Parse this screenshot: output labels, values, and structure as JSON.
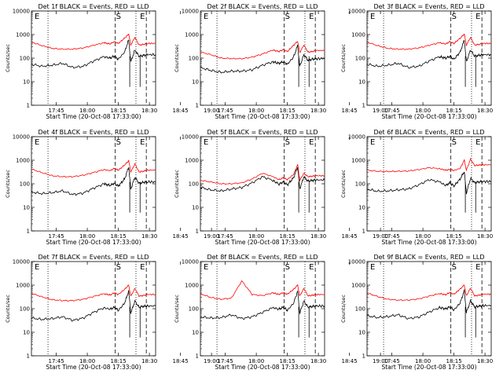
{
  "figure": {
    "ylabel": "Counts/sec",
    "xlabel": "Start Time (20-Oct-08 17:33:00)",
    "x_ticks": [
      "17:45",
      "18:00",
      "18:15",
      "18:30",
      "18:45",
      "19:00"
    ],
    "y_ticks": [
      "1",
      "10",
      "100",
      "1000",
      "10000"
    ],
    "markers": [
      "E",
      "S",
      "E"
    ],
    "colors": {
      "events": "#000000",
      "lld": "#ff0000"
    }
  },
  "chart_data": [
    {
      "type": "line",
      "title": "Det 1f BLACK = Events, RED = LLD",
      "xlabel": "Start Time (20-Oct-08 17:33:00)",
      "ylabel": "Counts/sec",
      "x_unit": "minutes since 17:33:00",
      "xlim": [
        0,
        60
      ],
      "ylim": [
        1,
        10000
      ],
      "ylog": true,
      "markers": {
        "dotted_lines_min": [
          8,
          50.5
        ],
        "dashed_lines_min": [
          40.5,
          55.5
        ],
        "letters": [
          "E",
          "S",
          "E"
        ]
      },
      "x": [
        0,
        5,
        10,
        15,
        20,
        25,
        30,
        35,
        38,
        40,
        42,
        45,
        47,
        48,
        50,
        52,
        54,
        56,
        60
      ],
      "series": [
        {
          "name": "Events",
          "color": "#000000",
          "values": [
            55,
            45,
            50,
            60,
            40,
            45,
            75,
            115,
            100,
            120,
            90,
            180,
            600,
            70,
            220,
            120,
            130,
            140,
            140
          ]
        },
        {
          "name": "LLD",
          "color": "#ff0000",
          "values": [
            480,
            340,
            260,
            240,
            240,
            270,
            350,
            450,
            400,
            500,
            420,
            700,
            1050,
            360,
            760,
            360,
            380,
            420,
            420
          ]
        }
      ]
    },
    {
      "type": "line",
      "title": "Det 2f BLACK = Events, RED = LLD",
      "xlabel": "Start Time (20-Oct-08 17:33:00)",
      "ylabel": "Counts/sec",
      "x_unit": "minutes since 17:33:00",
      "xlim": [
        0,
        60
      ],
      "ylim": [
        1,
        10000
      ],
      "ylog": true,
      "markers": {
        "dotted_lines_min": [
          8,
          50.5
        ],
        "dashed_lines_min": [
          40.5,
          55.5
        ],
        "letters": [
          "E",
          "S",
          "E"
        ]
      },
      "x": [
        0,
        5,
        10,
        15,
        20,
        25,
        30,
        35,
        38,
        40,
        42,
        45,
        47,
        48,
        50,
        52,
        54,
        56,
        60
      ],
      "series": [
        {
          "name": "Events",
          "color": "#000000",
          "values": [
            40,
            30,
            25,
            28,
            28,
            32,
            50,
            70,
            60,
            70,
            55,
            110,
            350,
            45,
            140,
            80,
            90,
            95,
            95
          ]
        },
        {
          "name": "LLD",
          "color": "#ff0000",
          "values": [
            180,
            140,
            100,
            95,
            95,
            110,
            150,
            220,
            190,
            230,
            190,
            350,
            520,
            170,
            360,
            180,
            190,
            210,
            210
          ]
        }
      ]
    },
    {
      "type": "line",
      "title": "Det 3f BLACK = Events, RED = LLD",
      "xlabel": "Start Time (20-Oct-08 17:33:00)",
      "ylabel": "Counts/sec",
      "x_unit": "minutes since 17:33:00",
      "xlim": [
        0,
        60
      ],
      "ylim": [
        1,
        10000
      ],
      "ylog": true,
      "markers": {
        "dotted_lines_min": [
          8,
          50.5
        ],
        "dashed_lines_min": [
          40.5,
          55.5
        ],
        "letters": [
          "E",
          "S",
          "E"
        ]
      },
      "x": [
        0,
        5,
        10,
        15,
        20,
        25,
        30,
        35,
        38,
        40,
        42,
        45,
        47,
        48,
        50,
        52,
        54,
        56,
        60
      ],
      "series": [
        {
          "name": "Events",
          "color": "#000000",
          "values": [
            55,
            45,
            50,
            60,
            40,
            45,
            75,
            115,
            100,
            120,
            90,
            180,
            600,
            70,
            220,
            120,
            130,
            140,
            140
          ]
        },
        {
          "name": "LLD",
          "color": "#ff0000",
          "values": [
            480,
            340,
            260,
            240,
            240,
            270,
            350,
            450,
            400,
            500,
            420,
            700,
            1050,
            360,
            760,
            360,
            380,
            420,
            420
          ]
        }
      ]
    },
    {
      "type": "line",
      "title": "Det 4f BLACK = Events, RED = LLD",
      "xlabel": "Start Time (20-Oct-08 17:33:00)",
      "ylabel": "Counts/sec",
      "x_unit": "minutes since 17:33:00",
      "xlim": [
        0,
        60
      ],
      "ylim": [
        1,
        10000
      ],
      "ylog": true,
      "markers": {
        "dotted_lines_min": [
          8,
          50.5
        ],
        "dashed_lines_min": [
          40.5,
          55.5
        ],
        "letters": [
          "E",
          "S",
          "E"
        ]
      },
      "x": [
        0,
        5,
        10,
        15,
        20,
        25,
        30,
        35,
        38,
        40,
        42,
        45,
        47,
        48,
        50,
        52,
        54,
        56,
        60
      ],
      "series": [
        {
          "name": "Events",
          "color": "#000000",
          "values": [
            45,
            38,
            42,
            50,
            35,
            40,
            65,
            100,
            85,
            105,
            80,
            160,
            520,
            60,
            190,
            105,
            115,
            120,
            120
          ]
        },
        {
          "name": "LLD",
          "color": "#ff0000",
          "values": [
            420,
            300,
            220,
            200,
            200,
            230,
            300,
            400,
            360,
            450,
            380,
            620,
            950,
            320,
            690,
            320,
            340,
            380,
            380
          ]
        }
      ]
    },
    {
      "type": "line",
      "title": "Det 5f BLACK = Events, RED = LLD",
      "xlabel": "Start Time (20-Oct-08 17:33:00)",
      "ylabel": "Counts/sec",
      "x_unit": "minutes since 17:33:00",
      "xlim": [
        0,
        60
      ],
      "ylim": [
        1,
        10000
      ],
      "ylog": true,
      "markers": {
        "dotted_lines_min": [
          8,
          50.5
        ],
        "dashed_lines_min": [
          40.5,
          55.5
        ],
        "letters": [
          "E",
          "S",
          "E"
        ]
      },
      "x": [
        0,
        5,
        10,
        15,
        20,
        25,
        30,
        35,
        38,
        40,
        42,
        45,
        47,
        48,
        50,
        52,
        54,
        56,
        60
      ],
      "series": [
        {
          "name": "Events",
          "color": "#000000",
          "values": [
            70,
            55,
            50,
            60,
            70,
            110,
            200,
            140,
            95,
            120,
            90,
            180,
            520,
            60,
            200,
            130,
            140,
            145,
            145
          ]
        },
        {
          "name": "LLD",
          "color": "#ff0000",
          "values": [
            140,
            120,
            100,
            100,
            110,
            160,
            280,
            200,
            150,
            180,
            150,
            250,
            650,
            140,
            280,
            200,
            210,
            220,
            220
          ]
        }
      ]
    },
    {
      "type": "line",
      "title": "Det 6f BLACK = Events, RED = LLD",
      "xlabel": "Start Time (20-Oct-08 17:33:00)",
      "ylabel": "Counts/sec",
      "x_unit": "minutes since 17:33:00",
      "xlim": [
        0,
        60
      ],
      "ylim": [
        1,
        10000
      ],
      "ylog": true,
      "markers": {
        "dotted_lines_min": [
          8,
          50.5
        ],
        "dashed_lines_min": [
          40.5,
          55.5
        ],
        "letters": [
          "E",
          "S",
          "E"
        ]
      },
      "x": [
        0,
        5,
        10,
        15,
        20,
        25,
        30,
        35,
        38,
        40,
        42,
        45,
        47,
        48,
        50,
        52,
        54,
        56,
        60
      ],
      "series": [
        {
          "name": "Events",
          "color": "#000000",
          "values": [
            60,
            48,
            50,
            55,
            60,
            90,
            150,
            120,
            85,
            110,
            80,
            160,
            330,
            40,
            170,
            110,
            120,
            125,
            125
          ]
        },
        {
          "name": "LLD",
          "color": "#ff0000",
          "values": [
            380,
            340,
            330,
            340,
            350,
            400,
            480,
            440,
            380,
            400,
            370,
            450,
            1000,
            380,
            1100,
            600,
            620,
            640,
            640
          ]
        }
      ]
    },
    {
      "type": "line",
      "title": "Det 7f BLACK = Events, RED = LLD",
      "xlabel": "Start Time (20-Oct-08 17:33:00)",
      "ylabel": "Counts/sec",
      "x_unit": "minutes since 17:33:00",
      "xlim": [
        0,
        60
      ],
      "ylim": [
        1,
        10000
      ],
      "ylog": true,
      "markers": {
        "dotted_lines_min": [
          8,
          50.5
        ],
        "dashed_lines_min": [
          40.5,
          55.5
        ],
        "letters": [
          "E",
          "S",
          "E"
        ]
      },
      "x": [
        0,
        5,
        10,
        15,
        20,
        25,
        30,
        35,
        38,
        40,
        42,
        45,
        47,
        48,
        50,
        52,
        54,
        56,
        60
      ],
      "series": [
        {
          "name": "Events",
          "color": "#000000",
          "values": [
            40,
            35,
            38,
            45,
            32,
            40,
            70,
            110,
            95,
            115,
            85,
            170,
            560,
            65,
            210,
            115,
            125,
            130,
            130
          ]
        },
        {
          "name": "LLD",
          "color": "#ff0000",
          "values": [
            450,
            320,
            240,
            220,
            220,
            250,
            330,
            430,
            380,
            470,
            400,
            660,
            1000,
            340,
            720,
            340,
            360,
            400,
            400
          ]
        }
      ]
    },
    {
      "type": "line",
      "title": "Det 8f BLACK = Events, RED = LLD",
      "xlabel": "Start Time (20-Oct-08 17:33:00)",
      "ylabel": "Counts/sec",
      "x_unit": "minutes since 17:33:00",
      "xlim": [
        0,
        60
      ],
      "ylim": [
        1,
        10000
      ],
      "ylog": true,
      "markers": {
        "dotted_lines_min": [
          8,
          50.5
        ],
        "dashed_lines_min": [
          40.5,
          55.5
        ],
        "letters": [
          "E",
          "S",
          "E"
        ]
      },
      "x": [
        0,
        5,
        10,
        15,
        20,
        25,
        30,
        35,
        38,
        40,
        42,
        45,
        47,
        48,
        50,
        52,
        54,
        56,
        60
      ],
      "series": [
        {
          "name": "Events",
          "color": "#000000",
          "values": [
            45,
            40,
            42,
            55,
            38,
            45,
            70,
            110,
            95,
            115,
            85,
            170,
            560,
            65,
            210,
            115,
            125,
            130,
            130
          ]
        },
        {
          "name": "LLD",
          "color": "#ff0000",
          "values": [
            430,
            300,
            250,
            280,
            1500,
            400,
            360,
            470,
            400,
            480,
            410,
            660,
            1000,
            350,
            720,
            350,
            370,
            400,
            400
          ]
        }
      ]
    },
    {
      "type": "line",
      "title": "Det 9f BLACK = Events, RED = LLD",
      "xlabel": "Start Time (20-Oct-08 17:33:00)",
      "ylabel": "Counts/sec",
      "x_unit": "minutes since 17:33:00",
      "xlim": [
        0,
        60
      ],
      "ylim": [
        1,
        10000
      ],
      "ylog": true,
      "markers": {
        "dotted_lines_min": [
          8,
          50.5
        ],
        "dashed_lines_min": [
          40.5,
          55.5
        ],
        "letters": [
          "E",
          "S",
          "E"
        ]
      },
      "x": [
        0,
        5,
        10,
        15,
        20,
        25,
        30,
        35,
        38,
        40,
        42,
        45,
        47,
        48,
        50,
        52,
        54,
        56,
        60
      ],
      "series": [
        {
          "name": "Events",
          "color": "#000000",
          "values": [
            50,
            42,
            46,
            55,
            38,
            44,
            72,
            112,
            98,
            118,
            88,
            175,
            580,
            68,
            215,
            118,
            128,
            135,
            135
          ]
        },
        {
          "name": "LLD",
          "color": "#ff0000",
          "values": [
            460,
            330,
            250,
            230,
            230,
            260,
            340,
            440,
            390,
            490,
            410,
            680,
            1020,
            350,
            740,
            350,
            370,
            410,
            410
          ]
        }
      ]
    }
  ]
}
